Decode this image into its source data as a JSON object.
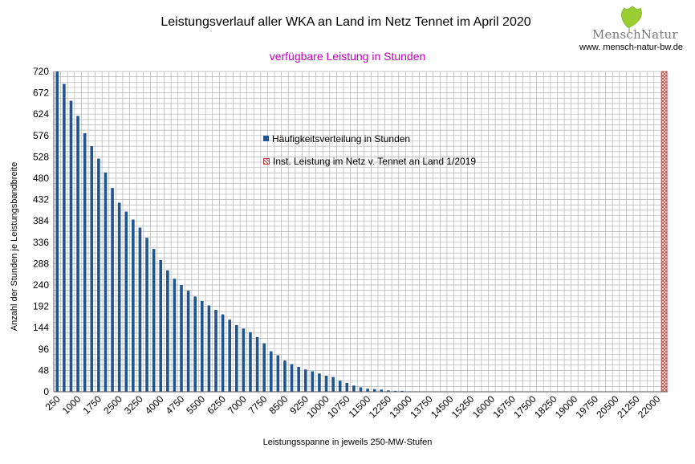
{
  "header": {
    "title": "Leistungsverlauf aller WKA an Land im Netz  Tennet im April 2020",
    "subtitle": "verfügbare Leistung in Stunden",
    "logo_text": "MenschNatur",
    "logo_url": "www. mensch-natur-bw.de"
  },
  "colors": {
    "bar": "#1f5590",
    "subtitle": "#c000c0",
    "grid": "#b3b3b3",
    "hatch": "#b33a3a",
    "logo_leaf": "#9acd32"
  },
  "chart_data": {
    "type": "bar",
    "title": "Leistungsverlauf aller WKA an Land im Netz  Tennet im April 2020",
    "subtitle": "verfügbare Leistung in Stunden",
    "xlabel": "Leistungsspanne in jeweils 250-MW-Stufen",
    "ylabel": "Anzahl der Stunden je Leistungsbandbreite",
    "ylim": [
      0,
      720
    ],
    "yticks": [
      0,
      48,
      96,
      144,
      192,
      240,
      288,
      336,
      384,
      432,
      480,
      528,
      576,
      624,
      672,
      720
    ],
    "xtick_labels": [
      "250",
      "1000",
      "1750",
      "2500",
      "3250",
      "4000",
      "4750",
      "5500",
      "6250",
      "7000",
      "7750",
      "8500",
      "9250",
      "10000",
      "10750",
      "11500",
      "12250",
      "13000",
      "13750",
      "14500",
      "15250",
      "16000",
      "16750",
      "17500",
      "18250",
      "19000",
      "19750",
      "20500",
      "21250",
      "22000"
    ],
    "x_start": 250,
    "x_step": 250,
    "grid": true,
    "legend": "inside, top-center",
    "series": [
      {
        "name": "Häufigkeitsverteilung in Stunden",
        "values": [
          720,
          692,
          654,
          620,
          581,
          552,
          524,
          493,
          458,
          425,
          405,
          387,
          369,
          346,
          321,
          296,
          273,
          254,
          240,
          227,
          214,
          204,
          194,
          184,
          174,
          162,
          150,
          142,
          134,
          123,
          109,
          91,
          82,
          70,
          62,
          56,
          50,
          46,
          41,
          36,
          33,
          25,
          20,
          14,
          10,
          7,
          6,
          5,
          3,
          2,
          2,
          1,
          1,
          0,
          0,
          0,
          0,
          0,
          0,
          0,
          0,
          0,
          0,
          0,
          0,
          0,
          0,
          0,
          0,
          0,
          0,
          0,
          0,
          0,
          0,
          0,
          0,
          0,
          0,
          0,
          0,
          0,
          0,
          0,
          0,
          0,
          0,
          0
        ]
      },
      {
        "name": "Inst. Leistung im Netz v. Tennet an Land 1/2019",
        "x_value": 22250,
        "style": "hatched"
      }
    ]
  }
}
